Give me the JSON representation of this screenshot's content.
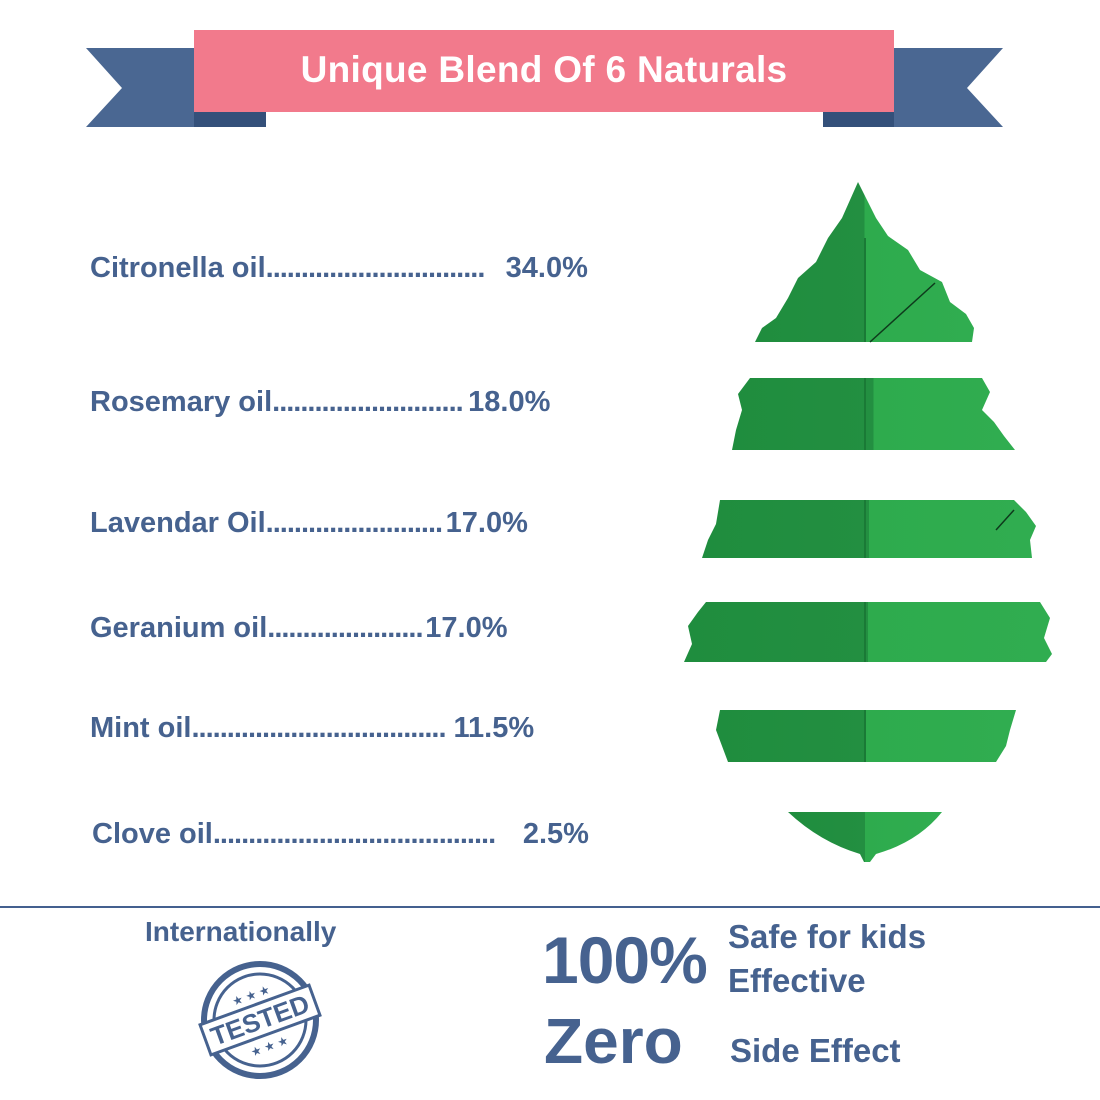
{
  "banner": {
    "title": "Unique Blend Of 6 Naturals",
    "pink": "#f27a8c",
    "blue": "#4a6792",
    "dark_blue": "#34507a"
  },
  "ingredients": [
    {
      "name": "Citronella oil",
      "dots": "...............................",
      "percent": "34.0%"
    },
    {
      "name": "Rosemary oil",
      "dots": "...........................",
      "percent": "18.0%"
    },
    {
      "name": "Lavendar Oil",
      "dots": ".........................",
      "percent": "17.0%"
    },
    {
      "name": "Geranium oil",
      "dots": "......................",
      "percent": "17.0%"
    },
    {
      "name": "Mint oil",
      "dots": "....................................",
      "percent": "11.5%"
    },
    {
      "name": "Clove oil",
      "dots": "........................................",
      "percent": "2.5%"
    }
  ],
  "leaf": {
    "color_light": "#2eab4d",
    "color_dark": "#1f8d3e"
  },
  "footer": {
    "international_label": "Internationally",
    "stamp_text": "TESTED",
    "hundred": "100%",
    "zero": "Zero",
    "claim_1": "Safe for kids",
    "claim_2": "Effective",
    "claim_3": "Side Effect",
    "text_color": "#46628f"
  }
}
